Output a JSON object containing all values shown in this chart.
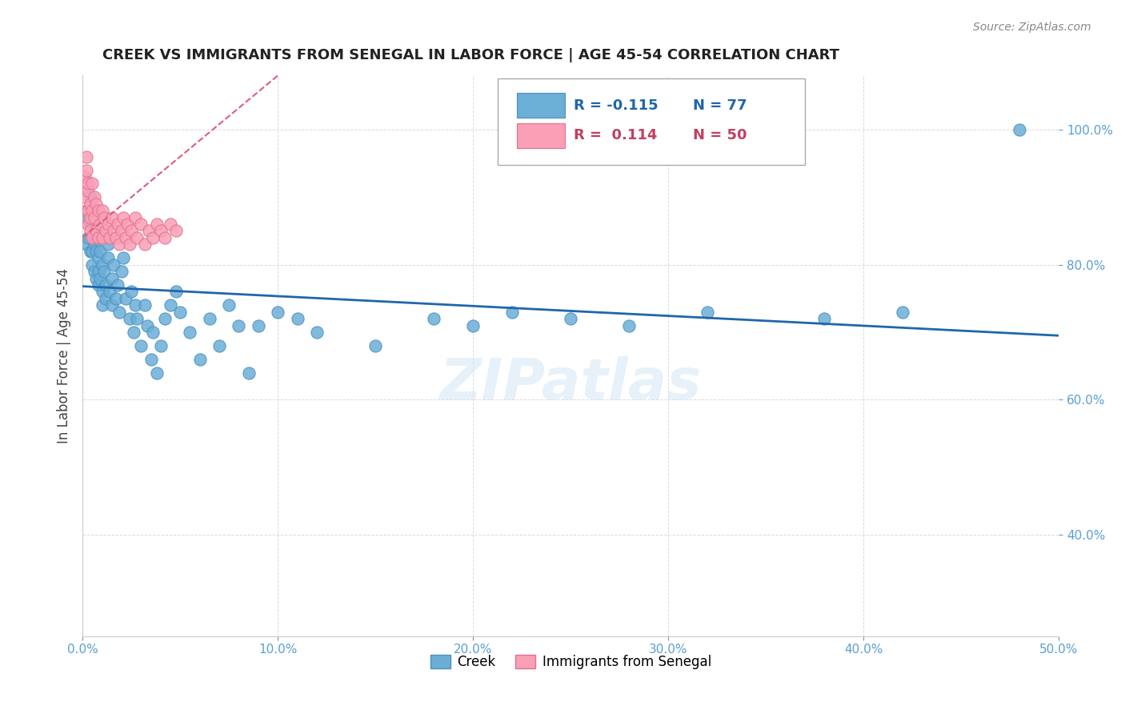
{
  "title": "CREEK VS IMMIGRANTS FROM SENEGAL IN LABOR FORCE | AGE 45-54 CORRELATION CHART",
  "source": "Source: ZipAtlas.com",
  "ylabel": "In Labor Force | Age 45-54",
  "xlim": [
    0.0,
    0.5
  ],
  "ylim": [
    0.25,
    1.08
  ],
  "xticks": [
    0.0,
    0.1,
    0.2,
    0.3,
    0.4,
    0.5
  ],
  "yticks": [
    0.4,
    0.6,
    0.8,
    1.0
  ],
  "xticklabels": [
    "0.0%",
    "10.0%",
    "20.0%",
    "30.0%",
    "40.0%",
    "50.0%"
  ],
  "yticklabels": [
    "40.0%",
    "60.0%",
    "80.0%",
    "100.0%"
  ],
  "legend_r_creek": "-0.115",
  "legend_n_creek": "77",
  "legend_r_senegal": "0.114",
  "legend_n_senegal": "50",
  "blue_color": "#6baed6",
  "pink_color": "#fa9fb5",
  "blue_line_color": "#2166ac",
  "pink_line_color": "#e05c7a",
  "watermark": "ZIPatlas",
  "creek_x": [
    0.002,
    0.002,
    0.003,
    0.003,
    0.004,
    0.004,
    0.004,
    0.005,
    0.005,
    0.005,
    0.005,
    0.006,
    0.006,
    0.006,
    0.007,
    0.007,
    0.007,
    0.008,
    0.008,
    0.008,
    0.009,
    0.009,
    0.01,
    0.01,
    0.01,
    0.011,
    0.012,
    0.012,
    0.013,
    0.013,
    0.014,
    0.015,
    0.015,
    0.016,
    0.017,
    0.018,
    0.019,
    0.02,
    0.021,
    0.022,
    0.024,
    0.025,
    0.026,
    0.027,
    0.028,
    0.03,
    0.032,
    0.033,
    0.035,
    0.036,
    0.038,
    0.04,
    0.042,
    0.045,
    0.048,
    0.05,
    0.055,
    0.06,
    0.065,
    0.07,
    0.075,
    0.08,
    0.085,
    0.09,
    0.1,
    0.11,
    0.12,
    0.15,
    0.18,
    0.2,
    0.22,
    0.25,
    0.28,
    0.32,
    0.38,
    0.42,
    0.48
  ],
  "creek_y": [
    0.87,
    0.83,
    0.88,
    0.84,
    0.9,
    0.86,
    0.82,
    0.84,
    0.82,
    0.86,
    0.8,
    0.83,
    0.79,
    0.85,
    0.82,
    0.84,
    0.78,
    0.81,
    0.79,
    0.77,
    0.78,
    0.82,
    0.8,
    0.76,
    0.74,
    0.79,
    0.77,
    0.75,
    0.83,
    0.81,
    0.76,
    0.78,
    0.74,
    0.8,
    0.75,
    0.77,
    0.73,
    0.79,
    0.81,
    0.75,
    0.72,
    0.76,
    0.7,
    0.74,
    0.72,
    0.68,
    0.74,
    0.71,
    0.66,
    0.7,
    0.64,
    0.68,
    0.72,
    0.74,
    0.76,
    0.73,
    0.7,
    0.66,
    0.72,
    0.68,
    0.74,
    0.71,
    0.64,
    0.71,
    0.73,
    0.72,
    0.7,
    0.68,
    0.72,
    0.71,
    0.73,
    0.72,
    0.71,
    0.73,
    0.72,
    0.73,
    1.0
  ],
  "senegal_x": [
    0.001,
    0.001,
    0.002,
    0.002,
    0.002,
    0.003,
    0.003,
    0.003,
    0.003,
    0.004,
    0.004,
    0.004,
    0.005,
    0.005,
    0.005,
    0.006,
    0.006,
    0.007,
    0.007,
    0.008,
    0.008,
    0.009,
    0.01,
    0.01,
    0.011,
    0.012,
    0.013,
    0.014,
    0.015,
    0.016,
    0.017,
    0.018,
    0.019,
    0.02,
    0.021,
    0.022,
    0.023,
    0.024,
    0.025,
    0.027,
    0.028,
    0.03,
    0.032,
    0.034,
    0.036,
    0.038,
    0.04,
    0.042,
    0.045,
    0.048
  ],
  "senegal_y": [
    0.93,
    0.9,
    0.96,
    0.88,
    0.94,
    0.91,
    0.88,
    0.86,
    0.92,
    0.89,
    0.87,
    0.85,
    0.92,
    0.88,
    0.84,
    0.9,
    0.87,
    0.89,
    0.85,
    0.88,
    0.84,
    0.86,
    0.88,
    0.84,
    0.87,
    0.85,
    0.86,
    0.84,
    0.87,
    0.85,
    0.84,
    0.86,
    0.83,
    0.85,
    0.87,
    0.84,
    0.86,
    0.83,
    0.85,
    0.87,
    0.84,
    0.86,
    0.83,
    0.85,
    0.84,
    0.86,
    0.85,
    0.84,
    0.86,
    0.85
  ],
  "creek_trendline": [
    0.0,
    0.768,
    0.5,
    0.695
  ],
  "senegal_trendline_intercept": 0.84,
  "senegal_trendline_slope": 2.4
}
